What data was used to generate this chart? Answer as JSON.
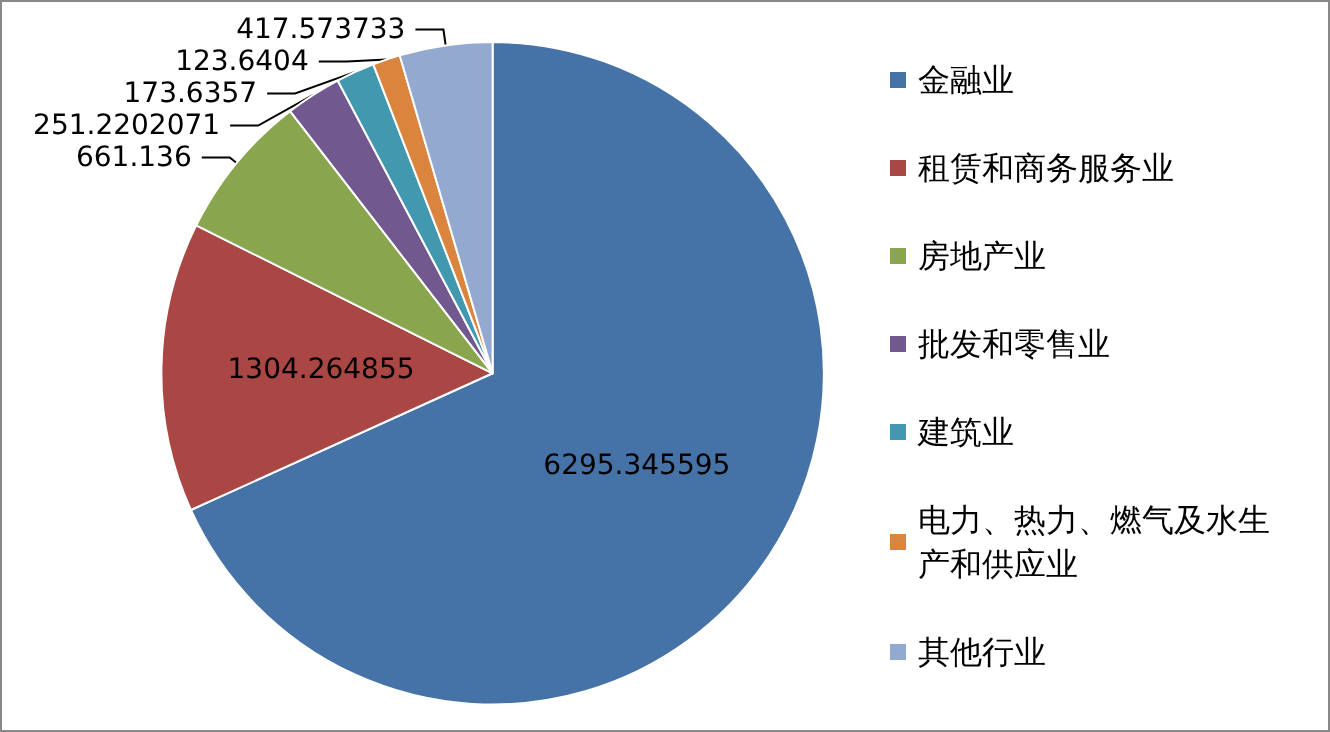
{
  "chart_data": {
    "type": "pie",
    "categories": [
      "金融业",
      "租赁和商务服务业",
      "房地产业",
      "批发和零售业",
      "建筑业",
      "电力、热力、燃气及水生产和供应业",
      "其他行业"
    ],
    "values": [
      6295.345595,
      1304.264855,
      661.136,
      251.2202071,
      173.6357,
      123.6404,
      417.573733
    ],
    "colors": [
      "#4572a7",
      "#aa4643",
      "#89a54e",
      "#71588f",
      "#4198af",
      "#db843d",
      "#93a9cf"
    ],
    "data_labels": true,
    "legend": "right"
  }
}
